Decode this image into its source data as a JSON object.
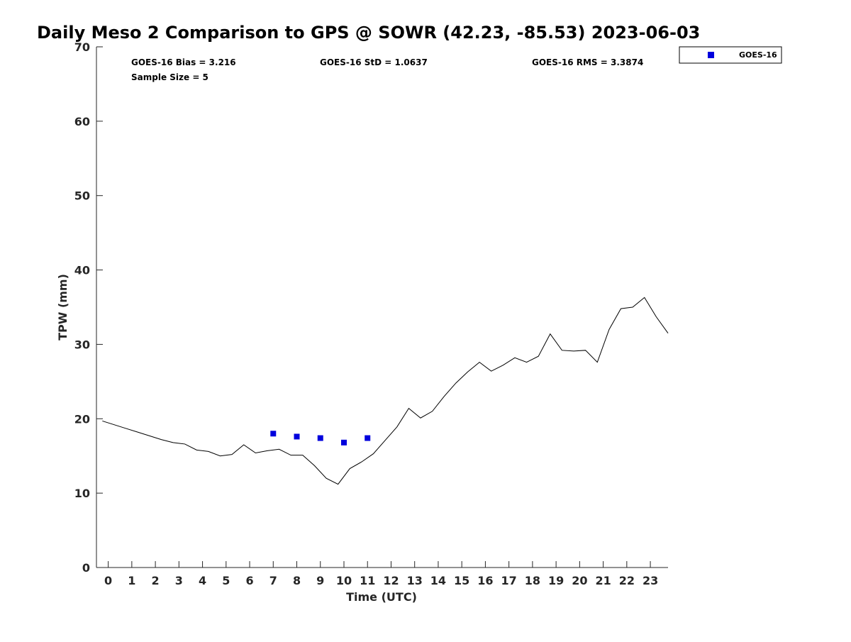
{
  "chart_data": {
    "type": "scatter",
    "title": "Daily Meso 2 Comparison to GPS @ SOWR (42.23, -85.53) 2023-06-03",
    "xlabel": "Time (UTC)",
    "ylabel": "TPW (mm)",
    "xlim": [
      -0.5,
      23.75
    ],
    "ylim": [
      0,
      70
    ],
    "xticks": [
      0,
      1,
      2,
      3,
      4,
      5,
      6,
      7,
      8,
      9,
      10,
      11,
      12,
      13,
      14,
      15,
      16,
      17,
      18,
      19,
      20,
      21,
      22,
      23
    ],
    "yticks": [
      0,
      10,
      20,
      30,
      40,
      50,
      60,
      70
    ],
    "grid": false,
    "legend_position": "top-right",
    "stats": [
      "GOES-16 Bias = 3.216",
      "GOES-16 StD = 1.0637",
      "GOES-16 RMS = 3.3874",
      "Sample Size = 5"
    ],
    "series": [
      {
        "type": "line",
        "color": "#000000",
        "x": [
          -0.25,
          0.25,
          0.75,
          1.25,
          1.75,
          2.25,
          2.75,
          3.25,
          3.75,
          4.25,
          4.75,
          5.25,
          5.75,
          6.25,
          6.75,
          7.25,
          7.75,
          8.25,
          8.75,
          9.25,
          9.75,
          10.25,
          10.75,
          11.25,
          11.75,
          12.25,
          12.75,
          13.25,
          13.75,
          14.25,
          14.75,
          15.25,
          15.75,
          16.25,
          16.75,
          17.25,
          17.75,
          18.25,
          18.75,
          19.25,
          19.75,
          20.25,
          20.75,
          21.25,
          21.75,
          22.25,
          22.75,
          23.25,
          23.75
        ],
        "values": [
          19.7,
          19.2,
          18.7,
          18.2,
          17.7,
          17.2,
          16.8,
          16.6,
          15.8,
          15.6,
          15.0,
          15.2,
          16.5,
          15.4,
          15.7,
          15.9,
          15.1,
          15.1,
          13.7,
          12.0,
          11.2,
          13.3,
          14.2,
          15.3,
          17.1,
          18.9,
          21.4,
          20.1,
          21.0,
          23.0,
          24.8,
          26.3,
          27.6,
          26.4,
          27.2,
          28.2,
          27.6,
          28.4,
          31.4,
          29.2,
          29.1,
          29.2,
          27.6,
          32.0,
          34.8,
          35.0,
          36.3,
          33.7,
          31.5
        ]
      },
      {
        "type": "scatter",
        "name": "GOES-16",
        "color": "#0000dd",
        "marker": "square",
        "x": [
          7.0,
          8.0,
          9.0,
          10.0,
          11.0
        ],
        "values": [
          18.0,
          17.6,
          17.4,
          16.8,
          17.4
        ]
      }
    ]
  }
}
